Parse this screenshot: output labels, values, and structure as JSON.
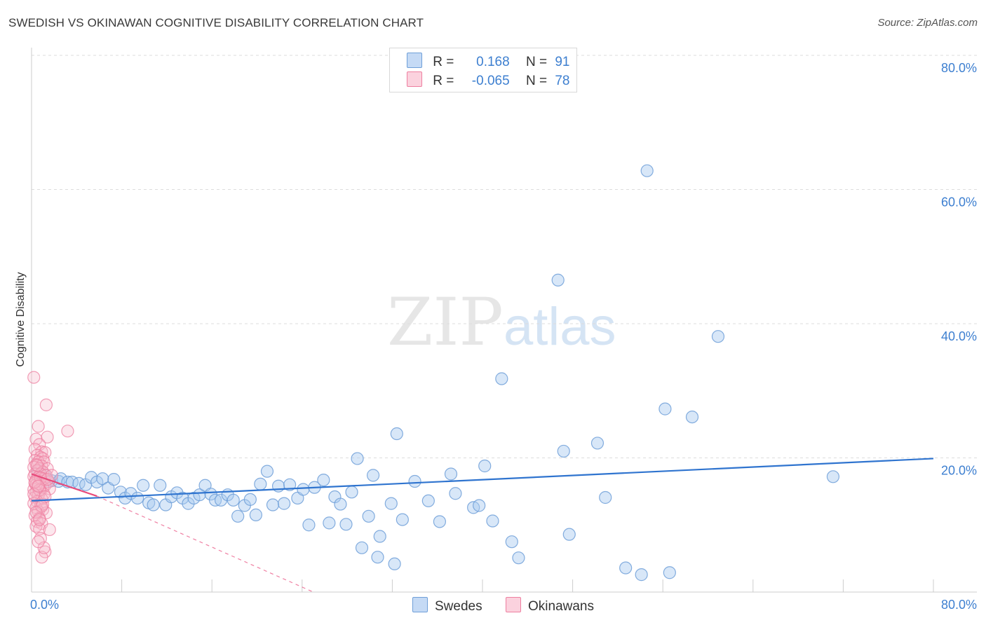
{
  "header": {
    "title": "SWEDISH VS OKINAWAN COGNITIVE DISABILITY CORRELATION CHART",
    "source": "Source: ZipAtlas.com"
  },
  "watermark": {
    "zip": "ZIP",
    "atlas": "atlas"
  },
  "legend": {
    "rows": [
      {
        "r_label": "R =",
        "r_value": "0.168",
        "n_label": "N =",
        "n_value": "91",
        "color": "#a9c9ef"
      },
      {
        "r_label": "R =",
        "r_value": "-0.065",
        "n_label": "N =",
        "n_value": "78",
        "color": "#f6b9cb"
      }
    ]
  },
  "bottom_legend": {
    "swedes": "Swedes",
    "okinawans": "Okinawans"
  },
  "colors": {
    "swedes_fill": "#a9c9ef",
    "swedes_stroke": "#6f9fd8",
    "swedes_line": "#2f74cf",
    "okinawans_fill": "#f6b9cb",
    "okinawans_stroke": "#ee7fa0",
    "okinawans_line": "#e8497a",
    "tick_text": "#3d7fd0",
    "grid": "#dddddd"
  },
  "chart_data": {
    "type": "scatter",
    "title": "SWEDISH VS OKINAWAN COGNITIVE DISABILITY CORRELATION CHART",
    "xlabel": "",
    "ylabel": "Cognitive Disability",
    "xlim": [
      0,
      80
    ],
    "ylim": [
      0,
      80
    ],
    "x_tick_labels": [
      "0.0%",
      "80.0%"
    ],
    "y_tick_labels": [
      "20.0%",
      "40.0%",
      "60.0%",
      "80.0%"
    ],
    "y_ticks": [
      20,
      40,
      60,
      80
    ],
    "grid": true,
    "legend": "top-center",
    "series": [
      {
        "name": "Swedes",
        "R": 0.168,
        "N": 91,
        "trend": {
          "x": [
            0,
            80
          ],
          "y": [
            13.6,
            19.9
          ]
        },
        "points": [
          [
            0.6,
            18.1
          ],
          [
            1.2,
            17.4
          ],
          [
            1.8,
            16.6
          ],
          [
            2.4,
            16.5
          ],
          [
            2.6,
            16.9
          ],
          [
            3.2,
            16.4
          ],
          [
            3.6,
            16.4
          ],
          [
            4.2,
            16.2
          ],
          [
            4.8,
            16.0
          ],
          [
            5.3,
            17.1
          ],
          [
            5.8,
            16.4
          ],
          [
            6.3,
            16.9
          ],
          [
            6.8,
            15.5
          ],
          [
            7.3,
            16.8
          ],
          [
            7.9,
            14.9
          ],
          [
            8.3,
            14.0
          ],
          [
            8.8,
            14.7
          ],
          [
            9.4,
            14.0
          ],
          [
            9.9,
            15.9
          ],
          [
            10.4,
            13.3
          ],
          [
            10.8,
            13.0
          ],
          [
            11.4,
            15.9
          ],
          [
            11.9,
            13.0
          ],
          [
            12.4,
            14.2
          ],
          [
            12.9,
            14.8
          ],
          [
            13.4,
            14.0
          ],
          [
            13.9,
            13.2
          ],
          [
            14.4,
            14.0
          ],
          [
            14.9,
            14.5
          ],
          [
            15.4,
            15.9
          ],
          [
            15.9,
            14.6
          ],
          [
            16.3,
            13.7
          ],
          [
            16.8,
            13.7
          ],
          [
            17.4,
            14.5
          ],
          [
            17.9,
            13.7
          ],
          [
            18.3,
            11.3
          ],
          [
            18.9,
            12.9
          ],
          [
            19.4,
            13.8
          ],
          [
            19.9,
            11.5
          ],
          [
            20.3,
            16.1
          ],
          [
            20.9,
            18.0
          ],
          [
            21.4,
            13.0
          ],
          [
            21.9,
            15.8
          ],
          [
            22.4,
            13.2
          ],
          [
            22.9,
            16.0
          ],
          [
            23.6,
            14.0
          ],
          [
            24.1,
            15.3
          ],
          [
            24.6,
            10.0
          ],
          [
            25.1,
            15.6
          ],
          [
            25.9,
            16.7
          ],
          [
            26.4,
            10.3
          ],
          [
            26.9,
            14.2
          ],
          [
            27.4,
            13.1
          ],
          [
            27.9,
            10.1
          ],
          [
            28.4,
            14.9
          ],
          [
            28.9,
            19.9
          ],
          [
            29.3,
            6.6
          ],
          [
            29.9,
            11.3
          ],
          [
            30.3,
            17.4
          ],
          [
            30.7,
            5.2
          ],
          [
            30.9,
            8.3
          ],
          [
            31.9,
            13.2
          ],
          [
            32.4,
            23.6
          ],
          [
            32.2,
            4.2
          ],
          [
            32.9,
            10.8
          ],
          [
            34.0,
            16.5
          ],
          [
            35.2,
            13.6
          ],
          [
            36.2,
            10.5
          ],
          [
            37.2,
            17.6
          ],
          [
            37.6,
            14.7
          ],
          [
            39.2,
            12.6
          ],
          [
            39.7,
            12.9
          ],
          [
            40.2,
            18.8
          ],
          [
            40.9,
            10.6
          ],
          [
            41.7,
            31.8
          ],
          [
            42.6,
            7.5
          ],
          [
            43.2,
            5.1
          ],
          [
            46.7,
            46.5
          ],
          [
            47.2,
            21.0
          ],
          [
            47.7,
            8.6
          ],
          [
            50.2,
            22.2
          ],
          [
            50.9,
            14.1
          ],
          [
            52.7,
            3.6
          ],
          [
            54.1,
            2.6
          ],
          [
            54.6,
            62.8
          ],
          [
            56.2,
            27.3
          ],
          [
            56.6,
            2.9
          ],
          [
            58.6,
            26.1
          ],
          [
            60.9,
            38.1
          ],
          [
            71.1,
            17.2
          ],
          [
            1.5,
            16.5
          ]
        ]
      },
      {
        "name": "Okinawans",
        "R": -0.065,
        "N": 78,
        "trend": {
          "x": [
            0,
            5.8
          ],
          "y": [
            17.6,
            14.3
          ]
        },
        "trend_extension": {
          "x": [
            5.8,
            25
          ],
          "y": [
            14.3,
            0
          ]
        },
        "points": [
          [
            0.2,
            32.0
          ],
          [
            1.3,
            27.9
          ],
          [
            3.2,
            24.0
          ],
          [
            0.6,
            24.7
          ],
          [
            1.4,
            23.1
          ],
          [
            0.4,
            22.8
          ],
          [
            0.7,
            22.0
          ],
          [
            0.3,
            21.3
          ],
          [
            0.9,
            20.9
          ],
          [
            1.2,
            20.8
          ],
          [
            0.5,
            20.4
          ],
          [
            0.8,
            20.1
          ],
          [
            1.0,
            19.9
          ],
          [
            0.3,
            19.6
          ],
          [
            0.6,
            19.4
          ],
          [
            1.1,
            19.4
          ],
          [
            0.4,
            19.0
          ],
          [
            0.9,
            18.8
          ],
          [
            0.2,
            18.6
          ],
          [
            0.7,
            18.4
          ],
          [
            1.4,
            18.4
          ],
          [
            0.5,
            18.1
          ],
          [
            1.0,
            17.9
          ],
          [
            0.3,
            17.6
          ],
          [
            0.8,
            17.6
          ],
          [
            1.3,
            17.4
          ],
          [
            0.2,
            17.2
          ],
          [
            0.6,
            17.1
          ],
          [
            1.1,
            16.9
          ],
          [
            0.4,
            16.7
          ],
          [
            0.9,
            16.5
          ],
          [
            1.5,
            16.4
          ],
          [
            0.3,
            16.2
          ],
          [
            0.7,
            16.1
          ],
          [
            1.2,
            15.9
          ],
          [
            0.5,
            15.7
          ],
          [
            1.0,
            15.6
          ],
          [
            1.6,
            15.4
          ],
          [
            0.2,
            15.3
          ],
          [
            0.8,
            15.1
          ],
          [
            0.4,
            14.9
          ],
          [
            1.1,
            14.6
          ],
          [
            0.6,
            14.4
          ],
          [
            0.3,
            14.1
          ],
          [
            0.9,
            13.9
          ],
          [
            0.5,
            13.5
          ],
          [
            0.2,
            13.2
          ],
          [
            0.8,
            12.9
          ],
          [
            0.4,
            12.6
          ],
          [
            1.0,
            12.3
          ],
          [
            0.6,
            12.0
          ],
          [
            1.3,
            11.8
          ],
          [
            0.3,
            11.4
          ],
          [
            0.7,
            11.0
          ],
          [
            0.5,
            10.5
          ],
          [
            0.9,
            10.2
          ],
          [
            0.4,
            9.8
          ],
          [
            0.7,
            9.4
          ],
          [
            1.6,
            9.3
          ],
          [
            0.8,
            8.0
          ],
          [
            1.2,
            6.0
          ],
          [
            0.9,
            5.2
          ],
          [
            1.1,
            6.6
          ],
          [
            0.6,
            7.5
          ],
          [
            0.4,
            16.0
          ],
          [
            0.7,
            15.2
          ],
          [
            0.2,
            14.6
          ],
          [
            1.0,
            13.1
          ],
          [
            0.5,
            18.9
          ],
          [
            0.8,
            17.0
          ],
          [
            1.4,
            16.8
          ],
          [
            0.3,
            16.4
          ],
          [
            0.6,
            15.8
          ],
          [
            1.2,
            14.2
          ],
          [
            0.9,
            12.8
          ],
          [
            0.4,
            11.9
          ],
          [
            0.7,
            10.8
          ],
          [
            1.8,
            17.4
          ]
        ]
      }
    ]
  }
}
